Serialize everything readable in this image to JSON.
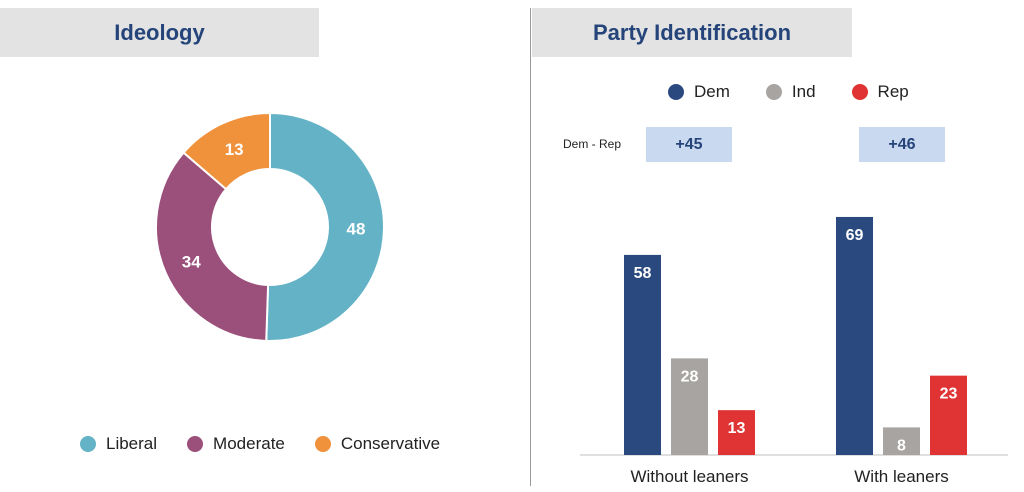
{
  "chart_data": [
    {
      "type": "pie",
      "title": "Ideology",
      "categories": [
        "Liberal",
        "Moderate",
        "Conservative"
      ],
      "values": [
        48,
        34,
        13
      ],
      "colors": [
        "#63b2c6",
        "#9b4f7b",
        "#f0913b"
      ],
      "donut": true
    },
    {
      "type": "bar",
      "title": "Party Identification",
      "categories": [
        "Without leaners",
        "With leaners"
      ],
      "series": [
        {
          "name": "Dem",
          "values": [
            58,
            69
          ],
          "color": "#2a4a7f"
        },
        {
          "name": "Ind",
          "values": [
            28,
            8
          ],
          "color": "#a7a4a1"
        },
        {
          "name": "Rep",
          "values": [
            13,
            23
          ],
          "color": "#e03434"
        }
      ],
      "difference_label": "Dem - Rep",
      "differences": [
        "+45",
        "+46"
      ],
      "legend": "top"
    }
  ]
}
